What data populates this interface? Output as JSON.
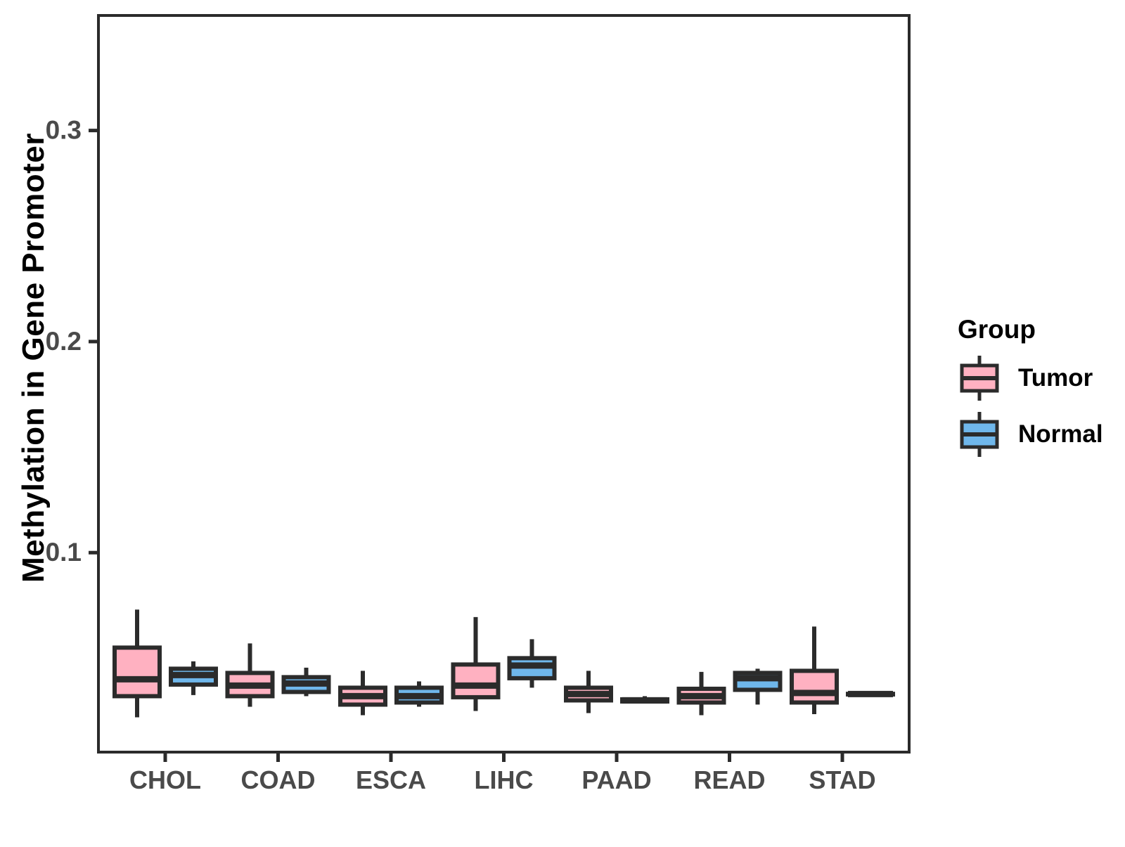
{
  "colors": {
    "stroke": "#2b2b2b",
    "axis_text": "#4a4a4a",
    "tumor_fill": "#FFB1C1",
    "normal_fill": "#6FB7EB",
    "background": "#ffffff"
  },
  "legend": {
    "title": "Group",
    "items": [
      {
        "label": "Tumor",
        "color": "#FFB1C1"
      },
      {
        "label": "Normal",
        "color": "#6FB7EB"
      }
    ]
  },
  "chart_data": {
    "type": "boxplot",
    "title": "",
    "xlabel": "",
    "ylabel": "Methylation in Gene Promoter",
    "categories": [
      "CHOL",
      "COAD",
      "ESCA",
      "LIHC",
      "PAAD",
      "READ",
      "STAD"
    ],
    "ylim": [
      0.0055,
      0.3545
    ],
    "yticks": [
      0.1,
      0.2,
      0.3
    ],
    "ytick_labels": [
      "0.1",
      "0.2",
      "0.3"
    ],
    "grid": false,
    "legend_position": "right",
    "series": [
      {
        "name": "Tumor",
        "color": "#FFB1C1",
        "boxes": [
          {
            "category": "CHOL",
            "min": 0.022,
            "q1": 0.032,
            "median": 0.04,
            "q3": 0.055,
            "max": 0.073
          },
          {
            "category": "COAD",
            "min": 0.027,
            "q1": 0.032,
            "median": 0.037,
            "q3": 0.043,
            "max": 0.057
          },
          {
            "category": "ESCA",
            "min": 0.023,
            "q1": 0.028,
            "median": 0.032,
            "q3": 0.036,
            "max": 0.044
          },
          {
            "category": "LIHC",
            "min": 0.025,
            "q1": 0.0315,
            "median": 0.037,
            "q3": 0.047,
            "max": 0.0695
          },
          {
            "category": "PAAD",
            "min": 0.024,
            "q1": 0.03,
            "median": 0.033,
            "q3": 0.036,
            "max": 0.044
          },
          {
            "category": "READ",
            "min": 0.023,
            "q1": 0.029,
            "median": 0.032,
            "q3": 0.0355,
            "max": 0.0435
          },
          {
            "category": "STAD",
            "min": 0.0235,
            "q1": 0.029,
            "median": 0.0335,
            "q3": 0.044,
            "max": 0.065
          }
        ]
      },
      {
        "name": "Normal",
        "color": "#6FB7EB",
        "boxes": [
          {
            "category": "CHOL",
            "min": 0.0325,
            "q1": 0.0375,
            "median": 0.042,
            "q3": 0.045,
            "max": 0.0485
          },
          {
            "category": "COAD",
            "min": 0.032,
            "q1": 0.034,
            "median": 0.038,
            "q3": 0.041,
            "max": 0.0455
          },
          {
            "category": "ESCA",
            "min": 0.027,
            "q1": 0.029,
            "median": 0.032,
            "q3": 0.036,
            "max": 0.039
          },
          {
            "category": "LIHC",
            "min": 0.036,
            "q1": 0.0405,
            "median": 0.0465,
            "q3": 0.05,
            "max": 0.059
          },
          {
            "category": "PAAD",
            "min": 0.029,
            "q1": 0.0295,
            "median": 0.03,
            "q3": 0.0305,
            "max": 0.032
          },
          {
            "category": "READ",
            "min": 0.028,
            "q1": 0.035,
            "median": 0.0405,
            "q3": 0.043,
            "max": 0.045
          },
          {
            "category": "STAD",
            "min": 0.0328,
            "q1": 0.0329,
            "median": 0.033,
            "q3": 0.0331,
            "max": 0.0332
          }
        ]
      }
    ]
  }
}
